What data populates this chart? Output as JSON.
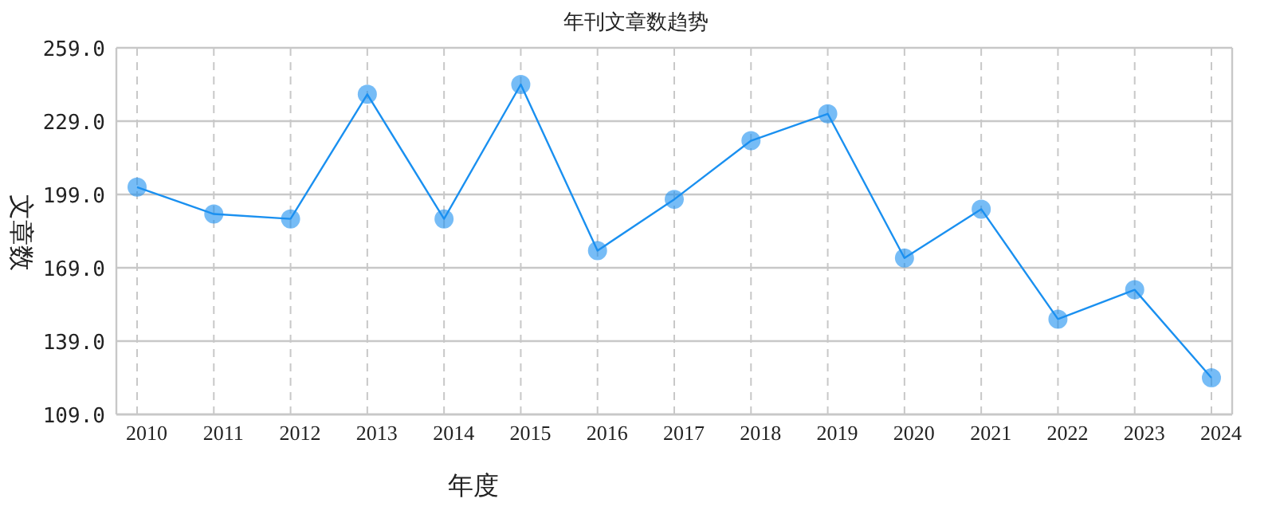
{
  "chart_data": {
    "type": "line",
    "title": "年刊文章数趋势",
    "xlabel": "年度",
    "ylabel": "文章数",
    "categories": [
      "2010",
      "2011",
      "2012",
      "2013",
      "2014",
      "2015",
      "2016",
      "2017",
      "2018",
      "2019",
      "2020",
      "2021",
      "2022",
      "2023",
      "2024"
    ],
    "series": [
      {
        "color": "#1a90f0",
        "values": [
          202,
          191,
          189,
          240,
          189,
          244,
          176,
          197,
          221,
          232,
          173,
          193,
          148,
          160,
          124
        ]
      }
    ],
    "ylim": [
      109,
      259
    ],
    "yticks": [
      {
        "value": 109,
        "label": "109.0"
      },
      {
        "value": 139,
        "label": "139.0"
      },
      {
        "value": 169,
        "label": "169.0"
      },
      {
        "value": 199,
        "label": "199.0"
      },
      {
        "value": 229,
        "label": "229.0"
      },
      {
        "value": 259,
        "label": "259.0"
      }
    ],
    "grid": true,
    "marker": "circle",
    "line_style": "solid"
  }
}
